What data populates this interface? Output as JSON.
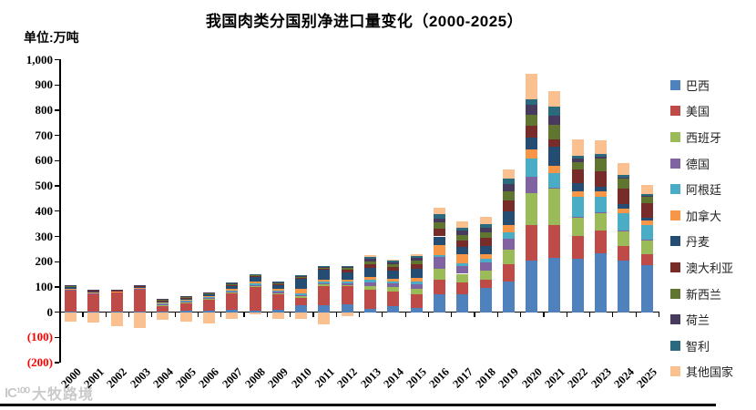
{
  "title": "我国肉类分国别净进口量变化（2000-2025）",
  "unit_label": "单位:万吨",
  "watermark": {
    "logo": "IC¹⁰⁰",
    "text": "大牧路境"
  },
  "colors": {
    "axis": "#000000",
    "negative_tick_label": "#ff0000",
    "background": "#ffffff"
  },
  "chart_data": {
    "type": "bar",
    "stacked": true,
    "title": "我国肉类分国别净进口量变化（2000-2025）",
    "ylabel": "万吨",
    "ylim": [
      -200,
      1000
    ],
    "ytick_step": 100,
    "grid": false,
    "legend_position": "right",
    "negative_label_style": "red-parentheses",
    "categories": [
      2000,
      2001,
      2002,
      2003,
      2004,
      2005,
      2006,
      2007,
      2008,
      2009,
      2010,
      2011,
      2012,
      2013,
      2014,
      2015,
      2016,
      2017,
      2018,
      2019,
      2020,
      2021,
      2022,
      2023,
      2024,
      2025
    ],
    "series": [
      {
        "name": "巴西",
        "color": "#4F81BD",
        "values": [
          1,
          1,
          1,
          1,
          1,
          6,
          7,
          8,
          4,
          8,
          28,
          26,
          32,
          12,
          24,
          17,
          70,
          72,
          96,
          120,
          205,
          214,
          210,
          232,
          205,
          188
        ]
      },
      {
        "name": "美国",
        "color": "#BE4B48",
        "values": [
          85,
          72,
          78,
          90,
          26,
          32,
          46,
          68,
          96,
          62,
          28,
          78,
          70,
          76,
          58,
          52,
          60,
          45,
          34,
          70,
          140,
          130,
          92,
          90,
          56,
          42
        ]
      },
      {
        "name": "西班牙",
        "color": "#9BBB59",
        "values": [
          0,
          0,
          0,
          0,
          1,
          1,
          1,
          3,
          5,
          6,
          6,
          5,
          5,
          17,
          17,
          24,
          42,
          35,
          36,
          56,
          126,
          146,
          72,
          70,
          60,
          54
        ]
      },
      {
        "name": "德国",
        "color": "#8064A2",
        "values": [
          2,
          2,
          1,
          2,
          4,
          2,
          2,
          3,
          3,
          4,
          4,
          4,
          6,
          14,
          14,
          19,
          45,
          30,
          30,
          44,
          66,
          4,
          2,
          2,
          2,
          2
        ]
      },
      {
        "name": "阿根廷",
        "color": "#4BACC6",
        "values": [
          0,
          0,
          0,
          0,
          2,
          3,
          3,
          3,
          5,
          4,
          9,
          8,
          8,
          8,
          8,
          10,
          10,
          11,
          15,
          25,
          70,
          56,
          82,
          64,
          70,
          58
        ]
      },
      {
        "name": "加拿大",
        "color": "#F79646",
        "values": [
          3,
          3,
          3,
          3,
          3,
          4,
          4,
          6,
          8,
          8,
          17,
          8,
          8,
          12,
          12,
          14,
          38,
          35,
          18,
          30,
          36,
          30,
          20,
          20,
          18,
          18
        ]
      },
      {
        "name": "丹麦",
        "color": "#254C73",
        "values": [
          9,
          7,
          3,
          7,
          7,
          7,
          7,
          14,
          18,
          14,
          40,
          38,
          30,
          36,
          30,
          36,
          35,
          30,
          34,
          54,
          48,
          76,
          32,
          18,
          18,
          12
        ]
      },
      {
        "name": "澳大利亚",
        "color": "#772C2A",
        "values": [
          3,
          2,
          1,
          2,
          3,
          3,
          3,
          4,
          5,
          5,
          5,
          5,
          10,
          15,
          15,
          18,
          32,
          27,
          30,
          44,
          48,
          30,
          55,
          62,
          62,
          58
        ]
      },
      {
        "name": "新西兰",
        "color": "#5F7530",
        "values": [
          1,
          1,
          1,
          1,
          2,
          2,
          2,
          3,
          3,
          4,
          4,
          4,
          6,
          12,
          12,
          15,
          24,
          22,
          25,
          36,
          42,
          58,
          30,
          52,
          38,
          26
        ]
      },
      {
        "name": "荷兰",
        "color": "#473A5D",
        "values": [
          2,
          2,
          1,
          1,
          3,
          2,
          2,
          3,
          3,
          3,
          3,
          3,
          4,
          9,
          8,
          10,
          16,
          15,
          18,
          30,
          40,
          36,
          12,
          6,
          4,
          3
        ]
      },
      {
        "name": "智利",
        "color": "#2A6A7C",
        "values": [
          0,
          0,
          0,
          0,
          0,
          0,
          0,
          1,
          2,
          2,
          2,
          2,
          3,
          6,
          5,
          6,
          15,
          14,
          14,
          20,
          24,
          34,
          14,
          10,
          10,
          8
        ]
      },
      {
        "name": "其他国家",
        "color": "#FAC08F",
        "values": [
          -36,
          -40,
          -55,
          -62,
          -32,
          -38,
          -45,
          -28,
          -10,
          -28,
          -26,
          -50,
          -16,
          8,
          6,
          10,
          27,
          23,
          26,
          36,
          100,
          62,
          64,
          54,
          47,
          36
        ]
      }
    ]
  }
}
